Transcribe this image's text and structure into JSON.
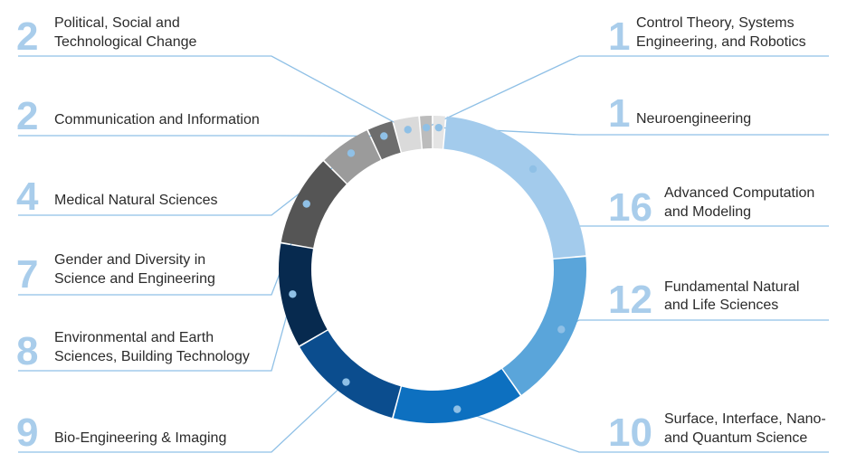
{
  "chart_data": {
    "type": "pie",
    "donut": true,
    "title": "",
    "slices": [
      {
        "label": "Neuroengineering",
        "label_lines": [
          "Neuroengineering"
        ],
        "value": 1,
        "color": "#e4e4e4",
        "side": "right"
      },
      {
        "label": "Advanced Computation and Modeling",
        "label_lines": [
          "Advanced Computation",
          "and Modeling"
        ],
        "value": 16,
        "color": "#a3cbec",
        "side": "right"
      },
      {
        "label": "Fundamental Natural and Life Sciences",
        "label_lines": [
          "Fundamental Natural",
          "and Life Sciences"
        ],
        "value": 12,
        "color": "#5aa5da",
        "side": "right"
      },
      {
        "label": "Surface, Interface, Nano- and Quantum Science",
        "label_lines": [
          "Surface, Interface, Nano-",
          "and Quantum Science"
        ],
        "value": 10,
        "color": "#0d70c0",
        "side": "right"
      },
      {
        "label": "Bio-Engineering & Imaging",
        "label_lines": [
          "Bio-Engineering & Imaging"
        ],
        "value": 9,
        "color": "#0b4d8e",
        "side": "left"
      },
      {
        "label": "Environmental and Earth Sciences, Building Technology",
        "label_lines": [
          "Environmental and Earth",
          "Sciences, Building Technology"
        ],
        "value": 8,
        "color": "#072a4f",
        "side": "left"
      },
      {
        "label": "Gender and Diversity in Science and Engineering",
        "label_lines": [
          "Gender and Diversity in",
          "Science and Engineering"
        ],
        "value": 7,
        "color": "#555555",
        "side": "left"
      },
      {
        "label": "Medical Natural Sciences",
        "label_lines": [
          "Medical Natural Sciences"
        ],
        "value": 4,
        "color": "#9b9b9b",
        "side": "left"
      },
      {
        "label": "Communication and Information",
        "label_lines": [
          "Communication and Information"
        ],
        "value": 2,
        "color": "#6d6d6d",
        "side": "left"
      },
      {
        "label": "Political, Social and Technological Change",
        "label_lines": [
          "Political, Social and",
          "Technological Change"
        ],
        "value": 2,
        "color": "#dadada",
        "side": "left"
      },
      {
        "label": "Control Theory, Systems Engineering, and Robotics",
        "label_lines": [
          "Control Theory, Systems",
          "Engineering, and Robotics"
        ],
        "value": 1,
        "color": "#bcbcbc",
        "side": "right"
      }
    ]
  }
}
